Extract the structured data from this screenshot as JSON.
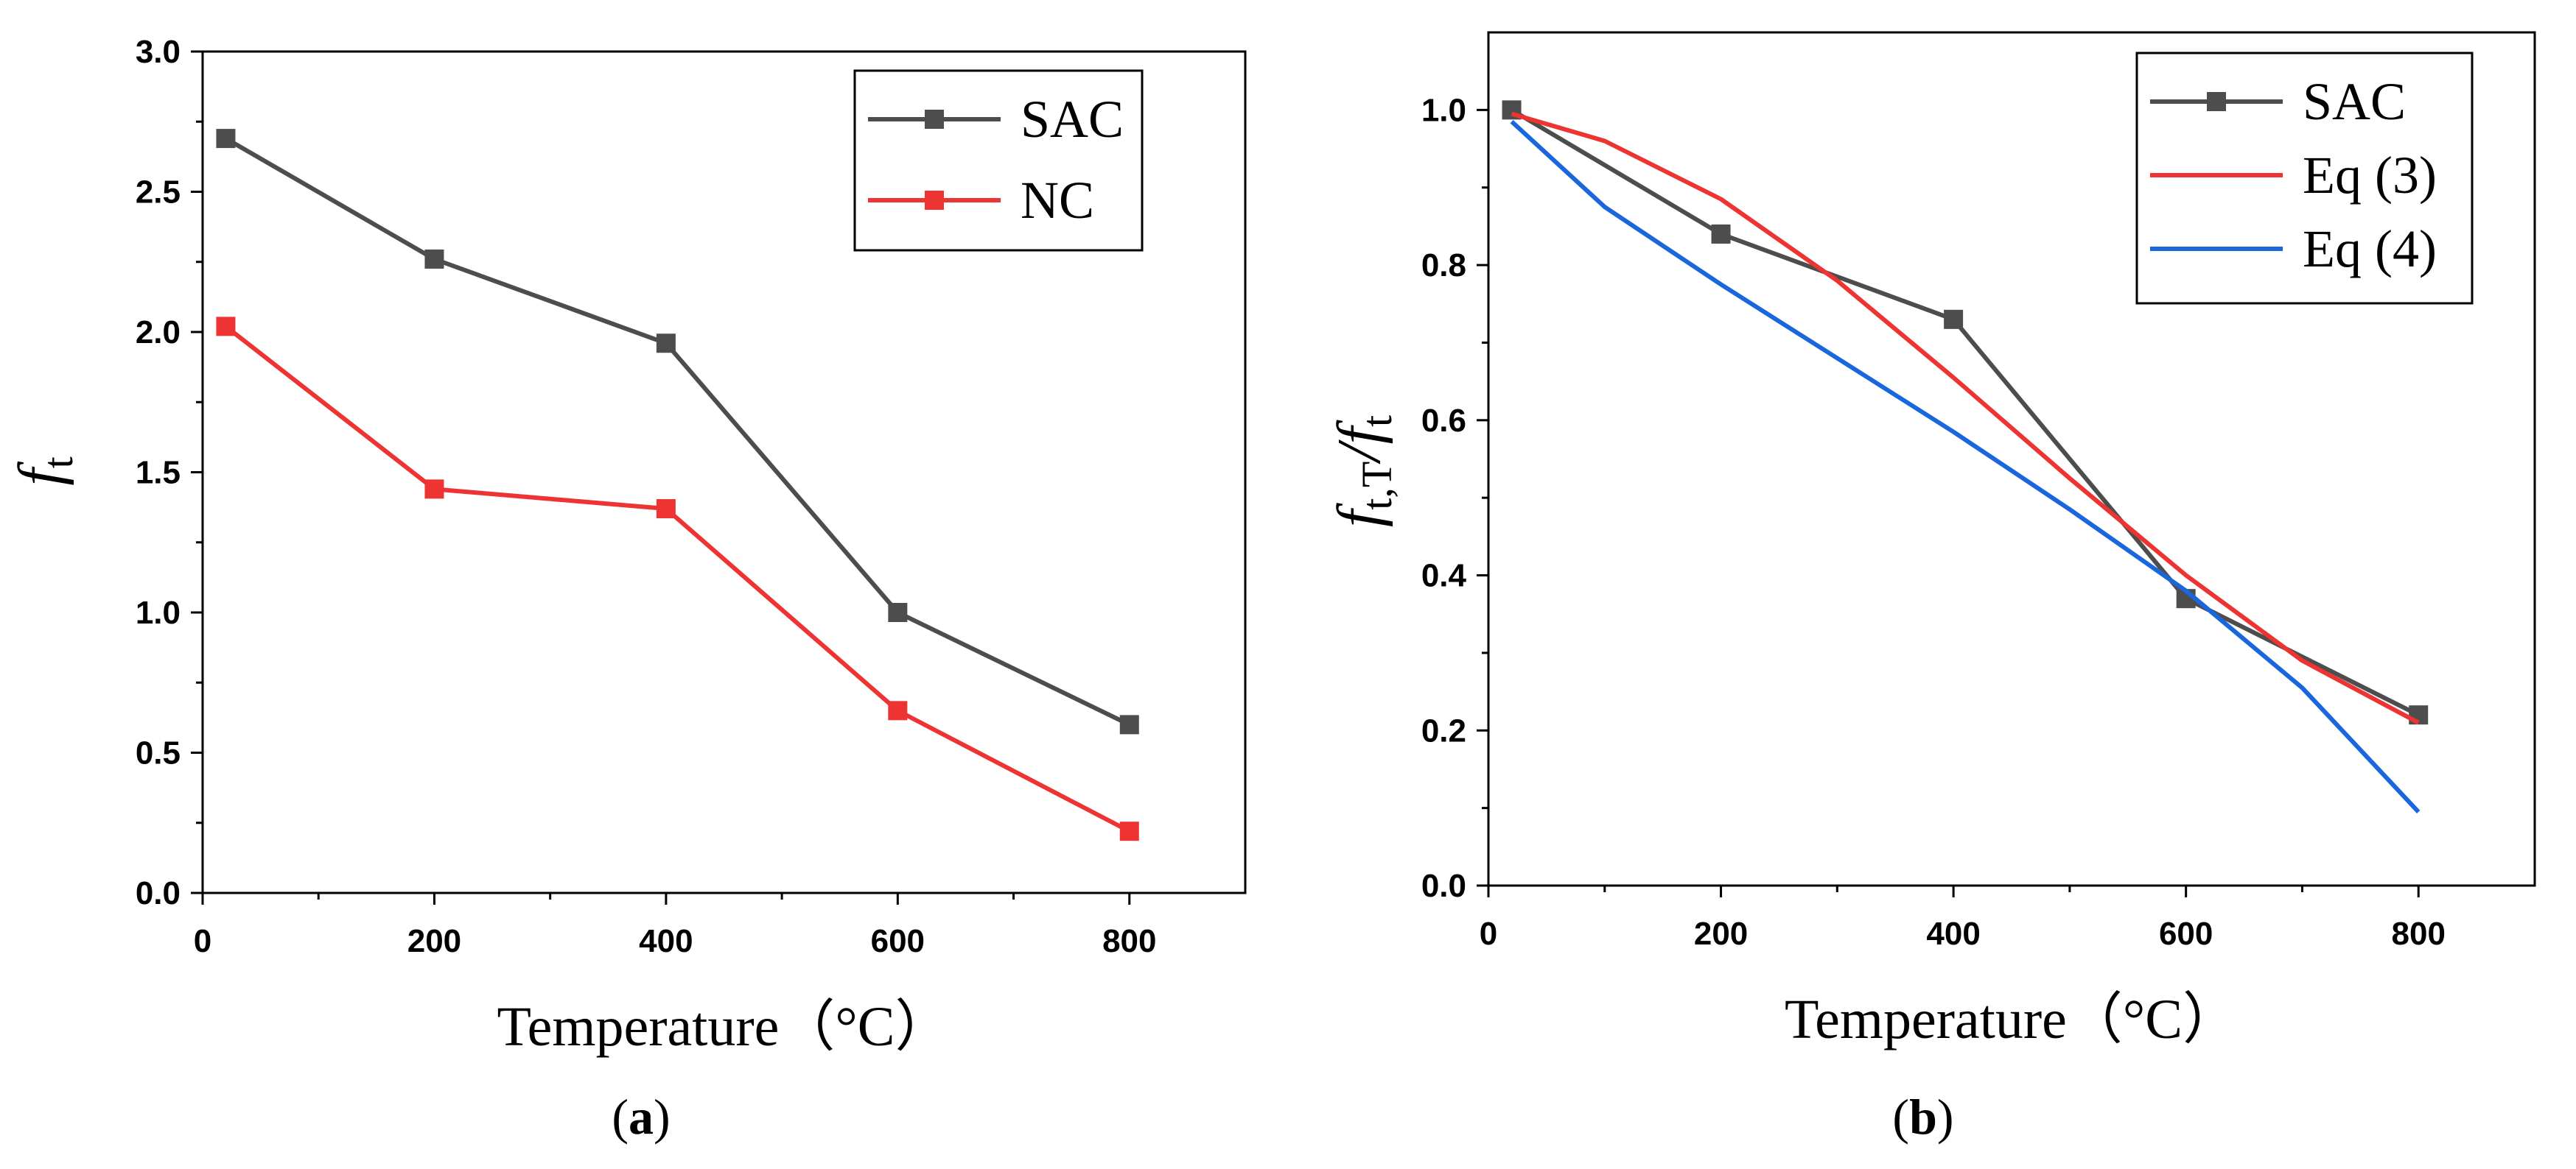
{
  "chart_data": [
    {
      "type": "line",
      "panel_label": "a",
      "xlabel": "Temperature（°C）",
      "ylabel": {
        "symbol": "f",
        "subscript": "t"
      },
      "xlim": [
        0,
        900
      ],
      "ylim": [
        0,
        3.0
      ],
      "x_ticks": [
        0,
        200,
        400,
        600,
        800
      ],
      "y_ticks": [
        0.0,
        0.5,
        1.0,
        1.5,
        2.0,
        2.5,
        3.0
      ],
      "y_tick_labels": [
        "0.0",
        "0.5",
        "1.0",
        "1.5",
        "2.0",
        "2.5",
        "3.0"
      ],
      "grid": false,
      "legend": "top-right",
      "series": [
        {
          "name": "SAC",
          "color": "#4d4d4d",
          "marker": "square",
          "x": [
            20,
            200,
            400,
            600,
            800
          ],
          "y": [
            2.69,
            2.26,
            1.96,
            1.0,
            0.6
          ]
        },
        {
          "name": "NC",
          "color": "#ee3333",
          "marker": "square",
          "x": [
            20,
            200,
            400,
            600,
            800
          ],
          "y": [
            2.02,
            1.44,
            1.37,
            0.65,
            0.22
          ]
        }
      ]
    },
    {
      "type": "line",
      "panel_label": "b",
      "xlabel": "Temperature（°C）",
      "ylabel": {
        "symbol1": "f",
        "subscript1": "t,T",
        "separator": "/",
        "symbol2": "f",
        "subscript2": "t"
      },
      "xlim": [
        0,
        900
      ],
      "ylim": [
        0,
        1.1
      ],
      "x_ticks": [
        0,
        200,
        400,
        600,
        800
      ],
      "y_ticks": [
        0.0,
        0.2,
        0.4,
        0.6,
        0.8,
        1.0
      ],
      "y_tick_labels": [
        "0.0",
        "0.2",
        "0.4",
        "0.6",
        "0.8",
        "1.0"
      ],
      "grid": false,
      "legend": "top-right",
      "series": [
        {
          "name": "SAC",
          "color": "#4d4d4d",
          "marker": "square",
          "x": [
            20,
            200,
            400,
            600,
            800
          ],
          "y": [
            1.0,
            0.84,
            0.73,
            0.37,
            0.22
          ]
        },
        {
          "name": "Eq (3)",
          "color": "#ee3333",
          "marker": "none",
          "x": [
            20,
            100,
            200,
            300,
            400,
            500,
            600,
            700,
            800
          ],
          "y": [
            0.995,
            0.96,
            0.885,
            0.78,
            0.655,
            0.525,
            0.4,
            0.29,
            0.21
          ]
        },
        {
          "name": "Eq (4)",
          "color": "#1a66dd",
          "marker": "none",
          "x": [
            20,
            100,
            200,
            300,
            400,
            500,
            600,
            700,
            800
          ],
          "y": [
            0.985,
            0.875,
            0.775,
            0.68,
            0.585,
            0.485,
            0.38,
            0.255,
            0.095
          ]
        }
      ]
    }
  ]
}
